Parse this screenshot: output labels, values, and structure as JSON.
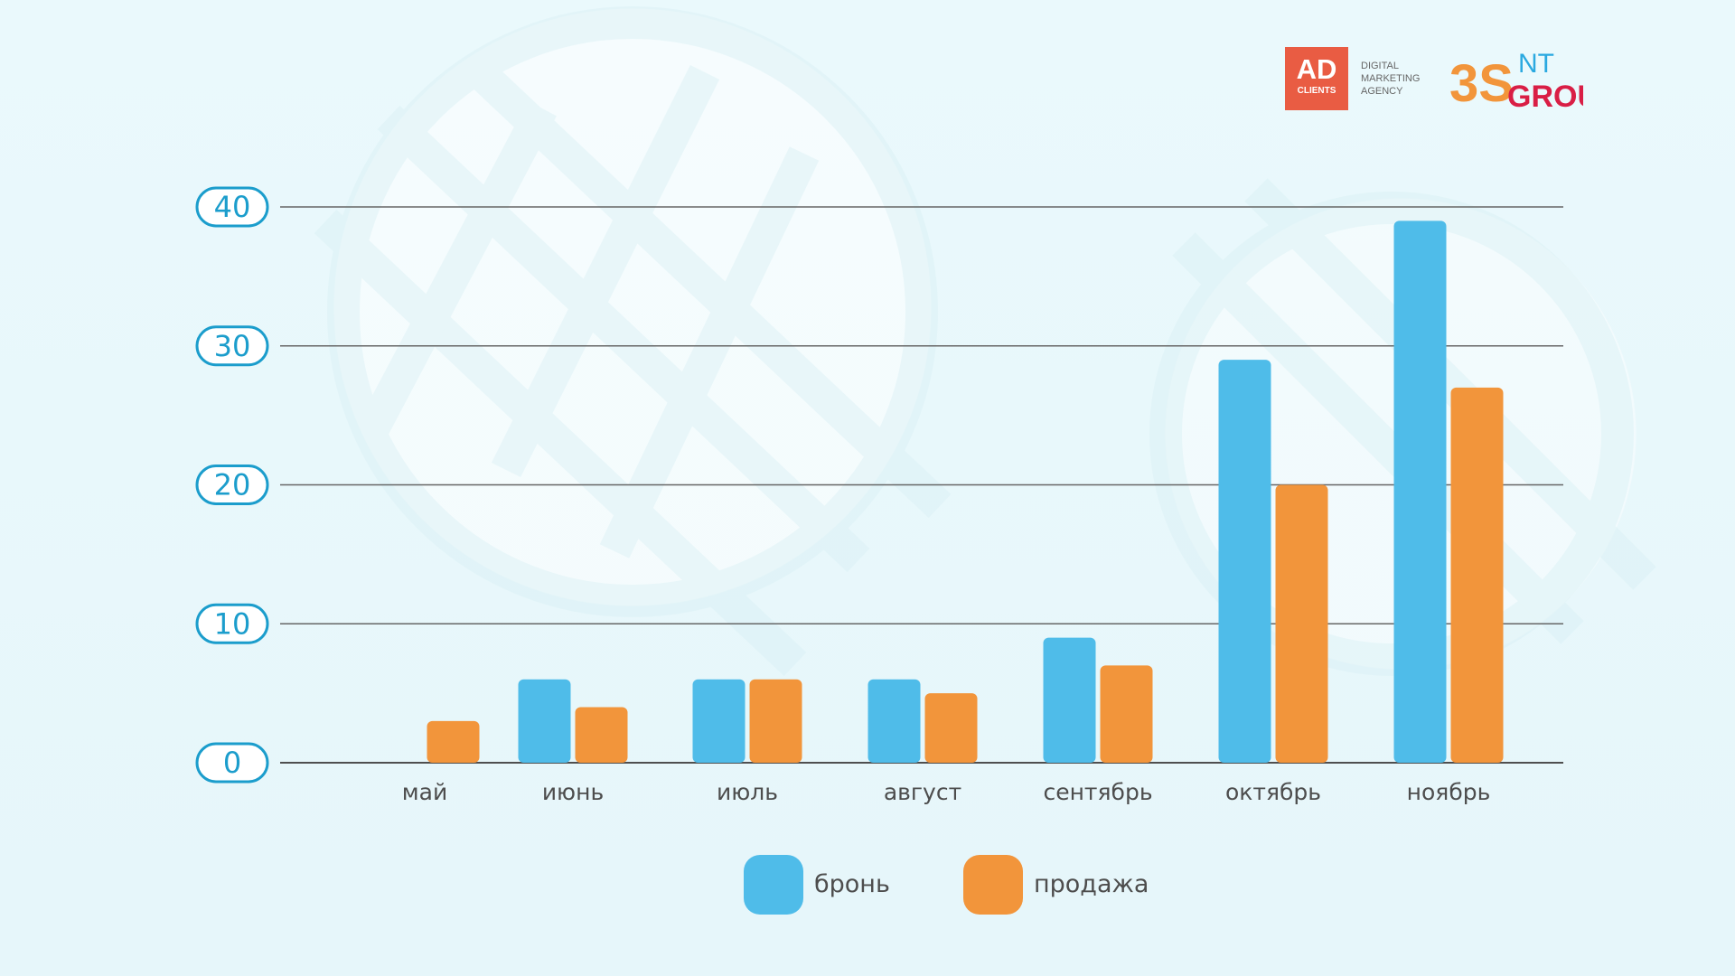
{
  "logos": {
    "ad_main": "AD",
    "ad_sub": "CLIENTS",
    "agency_lines": [
      "DIGITAL",
      "MARKETING",
      "AGENCY"
    ],
    "brand_mark": "3S",
    "brand_small": "NT",
    "brand_group": "GROUP"
  },
  "colors": {
    "background": "#e7f7fb",
    "axis_badge": "#1b9dcc",
    "grid": "#666666",
    "bron": "#4fbce9",
    "prodazha": "#f2953b",
    "ad_red": "#e95c43",
    "brand_orange": "#f2953b",
    "brand_blue": "#2aa9e0",
    "brand_red": "#d91e45"
  },
  "chart_data": {
    "type": "bar",
    "categories": [
      "май",
      "июнь",
      "июль",
      "август",
      "сентябрь",
      "октябрь",
      "ноябрь"
    ],
    "series": [
      {
        "name": "бронь",
        "values": [
          0,
          6,
          6,
          6,
          9,
          29,
          39
        ]
      },
      {
        "name": "продажа",
        "values": [
          3,
          4,
          6,
          5,
          7,
          20,
          27
        ]
      }
    ],
    "title": "",
    "xlabel": "",
    "ylabel": "",
    "ylim": [
      0,
      40
    ],
    "yticks": [
      0,
      10,
      20,
      30,
      40
    ],
    "grid": true,
    "legend": "bottom-center"
  }
}
